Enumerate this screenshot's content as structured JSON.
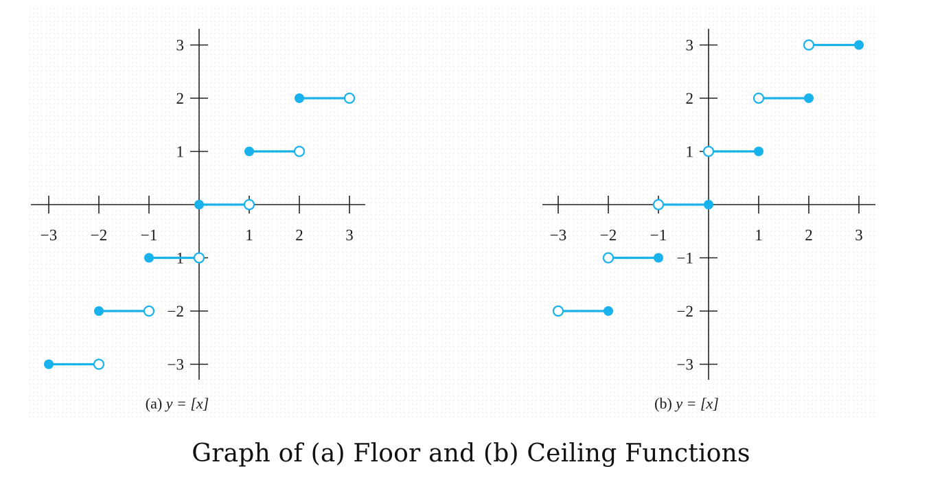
{
  "caption": "Graph of (a) Floor and (b) Ceiling Functions",
  "colors": {
    "step": "#1ab2ec",
    "axis": "#222222"
  },
  "chart_data": [
    {
      "type": "line",
      "title": "",
      "panel_label": "(a)",
      "equation": "y = [x]",
      "xlim": [
        -3,
        3
      ],
      "ylim": [
        -3,
        3
      ],
      "x_ticks": [
        -3,
        -2,
        -1,
        1,
        2,
        3
      ],
      "y_ticks": [
        -3,
        -2,
        -1,
        1,
        2,
        3
      ],
      "x_tick_labels": [
        "−3",
        "−2",
        "−1",
        "1",
        "2",
        "3"
      ],
      "y_tick_labels": [
        "−3",
        "−2",
        "−1",
        "1",
        "2",
        "3"
      ],
      "grid": false,
      "segments": [
        {
          "x_start": -3,
          "x_end": -2,
          "y": -3,
          "start": "closed",
          "end": "open"
        },
        {
          "x_start": -2,
          "x_end": -1,
          "y": -2,
          "start": "closed",
          "end": "open"
        },
        {
          "x_start": -1,
          "x_end": 0,
          "y": -1,
          "start": "closed",
          "end": "open"
        },
        {
          "x_start": 0,
          "x_end": 1,
          "y": 0,
          "start": "closed",
          "end": "open"
        },
        {
          "x_start": 1,
          "x_end": 2,
          "y": 1,
          "start": "closed",
          "end": "open"
        },
        {
          "x_start": 2,
          "x_end": 3,
          "y": 2,
          "start": "closed",
          "end": "open"
        }
      ]
    },
    {
      "type": "line",
      "title": "",
      "panel_label": "(b)",
      "equation": "y = [x]",
      "xlim": [
        -3,
        3
      ],
      "ylim": [
        -3,
        3
      ],
      "x_ticks": [
        -3,
        -2,
        -1,
        1,
        2,
        3
      ],
      "y_ticks": [
        -3,
        -2,
        -1,
        1,
        2,
        3
      ],
      "x_tick_labels": [
        "−3",
        "−2",
        "−1",
        "1",
        "2",
        "3"
      ],
      "y_tick_labels": [
        "−3",
        "−2",
        "−1",
        "1",
        "2",
        "3"
      ],
      "grid": false,
      "segments": [
        {
          "x_start": -3,
          "x_end": -2,
          "y": -2,
          "start": "open",
          "end": "closed"
        },
        {
          "x_start": -2,
          "x_end": -1,
          "y": -1,
          "start": "open",
          "end": "closed"
        },
        {
          "x_start": -1,
          "x_end": 0,
          "y": 0,
          "start": "open",
          "end": "closed"
        },
        {
          "x_start": 0,
          "x_end": 1,
          "y": 1,
          "start": "open",
          "end": "closed"
        },
        {
          "x_start": 1,
          "x_end": 2,
          "y": 2,
          "start": "open",
          "end": "closed"
        },
        {
          "x_start": 2,
          "x_end": 3,
          "y": 3,
          "start": "open",
          "end": "closed"
        }
      ]
    }
  ]
}
